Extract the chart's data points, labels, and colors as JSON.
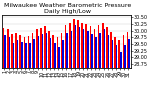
{
  "title": "Milwaukee Weather Barometric Pressure",
  "subtitle": "Daily High/Low",
  "ylim": [
    28.6,
    30.6
  ],
  "yticks": [
    28.75,
    29.0,
    29.25,
    29.5,
    29.75,
    30.0,
    30.25,
    30.5
  ],
  "days": [
    1,
    2,
    3,
    4,
    5,
    6,
    7,
    8,
    9,
    10,
    11,
    12,
    13,
    14,
    15,
    16,
    17,
    18,
    19,
    20,
    21,
    22,
    23,
    24,
    25,
    26,
    27,
    28,
    29,
    30,
    31
  ],
  "high": [
    30.1,
    30.05,
    29.88,
    29.9,
    29.85,
    29.78,
    29.8,
    29.92,
    30.05,
    30.12,
    30.18,
    30.0,
    29.82,
    29.75,
    29.92,
    30.2,
    30.28,
    30.45,
    30.42,
    30.3,
    30.25,
    30.18,
    30.08,
    30.22,
    30.3,
    30.15,
    29.95,
    29.78,
    29.65,
    29.82,
    29.95
  ],
  "low": [
    29.85,
    29.78,
    29.55,
    29.65,
    29.58,
    29.52,
    29.55,
    29.68,
    29.8,
    29.88,
    29.9,
    29.72,
    29.55,
    29.4,
    29.65,
    29.9,
    30.0,
    30.2,
    30.15,
    30.05,
    29.98,
    29.88,
    29.75,
    29.92,
    30.05,
    29.85,
    29.65,
    29.45,
    29.2,
    29.48,
    29.68
  ],
  "high_color": "#ff0000",
  "low_color": "#0000dd",
  "bg_color": "#ffffff",
  "plot_bg": "#ffffff",
  "grid_color": "#cccccc",
  "title_fontsize": 4.5,
  "tick_fontsize": 3.5,
  "bar_width": 0.38
}
